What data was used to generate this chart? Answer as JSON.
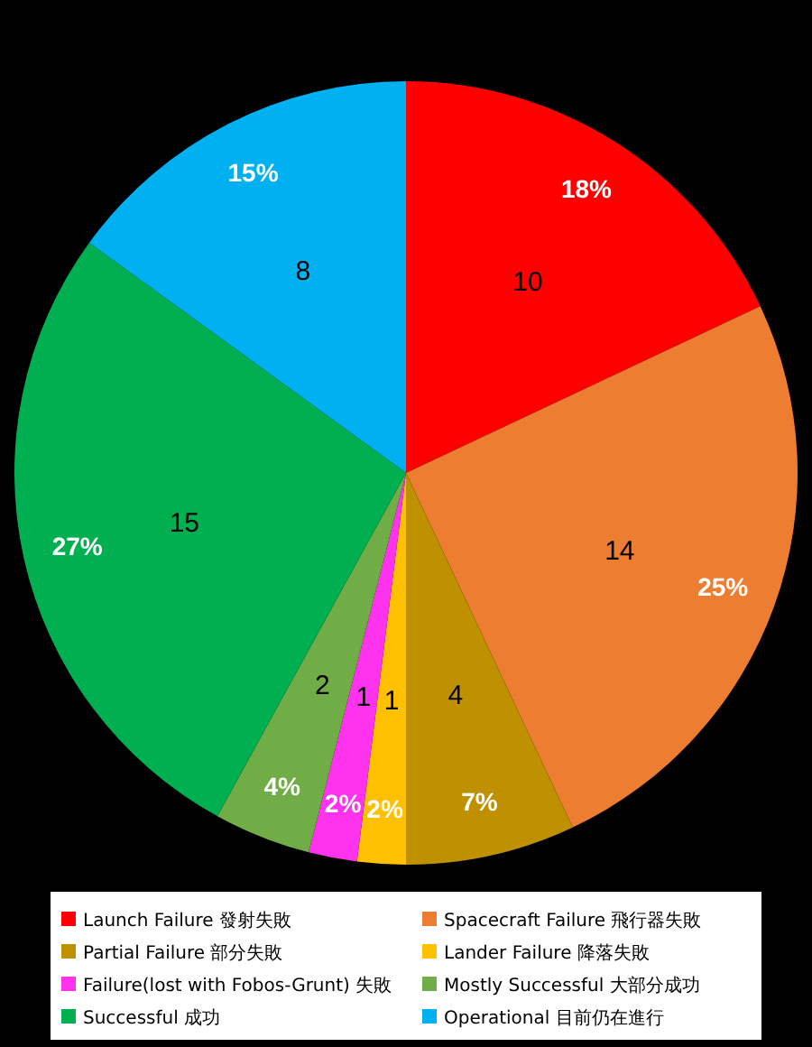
{
  "chart_data": {
    "type": "pie",
    "categories": [
      "Launch Failure 發射失敗",
      "Spacecraft Failure 飛行器失敗",
      "Partial Failure 部分失敗",
      "Lander Failure 降落失敗",
      "Failure(lost with Fobos-Grunt) 失敗",
      "Mostly Successful 大部分成功",
      "Successful 成功",
      "Operational 目前仍在進行"
    ],
    "values": [
      18,
      25,
      7,
      2,
      2,
      4,
      27,
      15
    ],
    "colors": [
      "#ff0000",
      "#ed7d31",
      "#bf9000",
      "#ffc000",
      "#ff33ee",
      "#70ad47",
      "#00b050",
      "#00b0f0"
    ],
    "value_labels": [
      "18%",
      "25%",
      "7%",
      "2%",
      "2%",
      "4%",
      "27%",
      "15%"
    ],
    "annotations": [
      {
        "text": "10",
        "x": "Launch Failure 發射失敗"
      },
      {
        "text": "14",
        "x": "Spacecraft Failure 飛行器失敗"
      },
      {
        "text": "4",
        "x": "Partial Failure 部分失敗"
      },
      {
        "text": "1",
        "x": "Lander Failure 降落失敗"
      },
      {
        "text": "1",
        "x": "Failure(lost with Fobos-Grunt) 失敗"
      },
      {
        "text": "2",
        "x": "Mostly Successful 大部分成功"
      },
      {
        "text": "15",
        "x": "Successful 成功"
      },
      {
        "text": "8",
        "x": "Operational 目前仍在進行"
      }
    ],
    "legend": "bottom"
  }
}
